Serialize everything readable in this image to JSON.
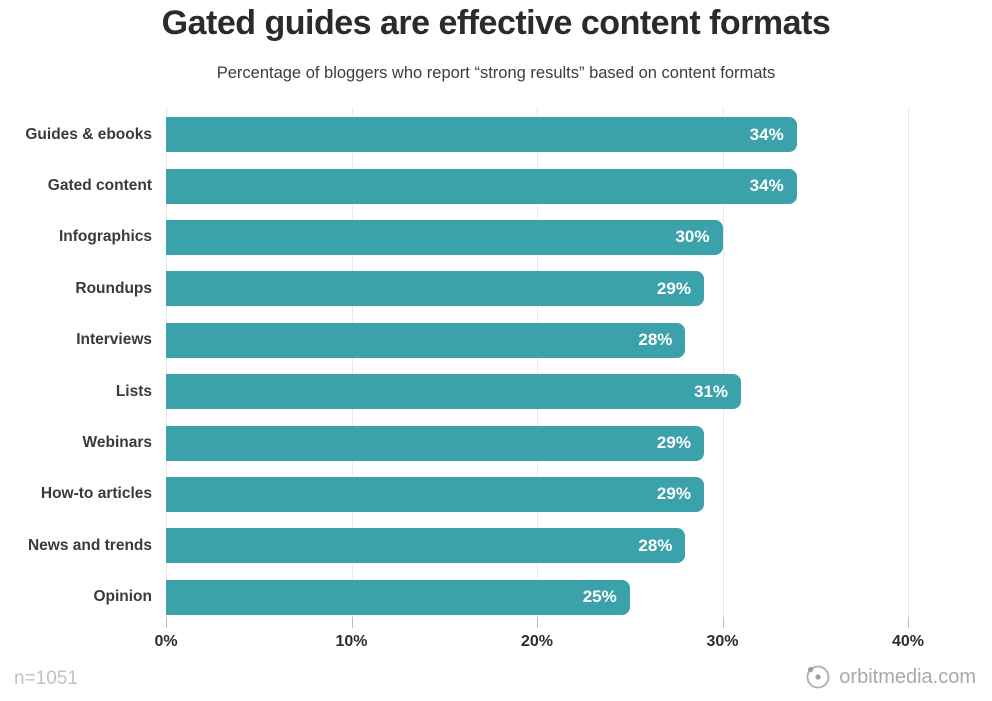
{
  "title": "Gated guides are effective content formats",
  "subtitle": "Percentage of bloggers who report “strong results” based on content formats",
  "footer": {
    "sample_size": "n=1051",
    "source": "orbitmedia.com"
  },
  "chart_data": {
    "type": "bar",
    "orientation": "horizontal",
    "title": "Gated guides are effective content formats",
    "subtitle": "Percentage of bloggers who report “strong results” based on content formats",
    "categories": [
      "Guides & ebooks",
      "Gated content",
      "Infographics",
      "Roundups",
      "Interviews",
      "Lists",
      "Webinars",
      "How-to articles",
      "News and trends",
      "Opinion"
    ],
    "values": [
      34,
      34,
      30,
      29,
      28,
      31,
      29,
      29,
      28,
      25
    ],
    "value_suffix": "%",
    "xlabel": "",
    "ylabel": "",
    "xlim": [
      0,
      40
    ],
    "x_tick_values": [
      0,
      10,
      20,
      30,
      40
    ],
    "x_tick_labels": [
      "0%",
      "10%",
      "20%",
      "30%",
      "40%"
    ],
    "grid": true,
    "legend": false,
    "bar_color": "#3BA1AB",
    "value_label_color": "#ffffff",
    "gridline_color": "#e9e9e9"
  }
}
